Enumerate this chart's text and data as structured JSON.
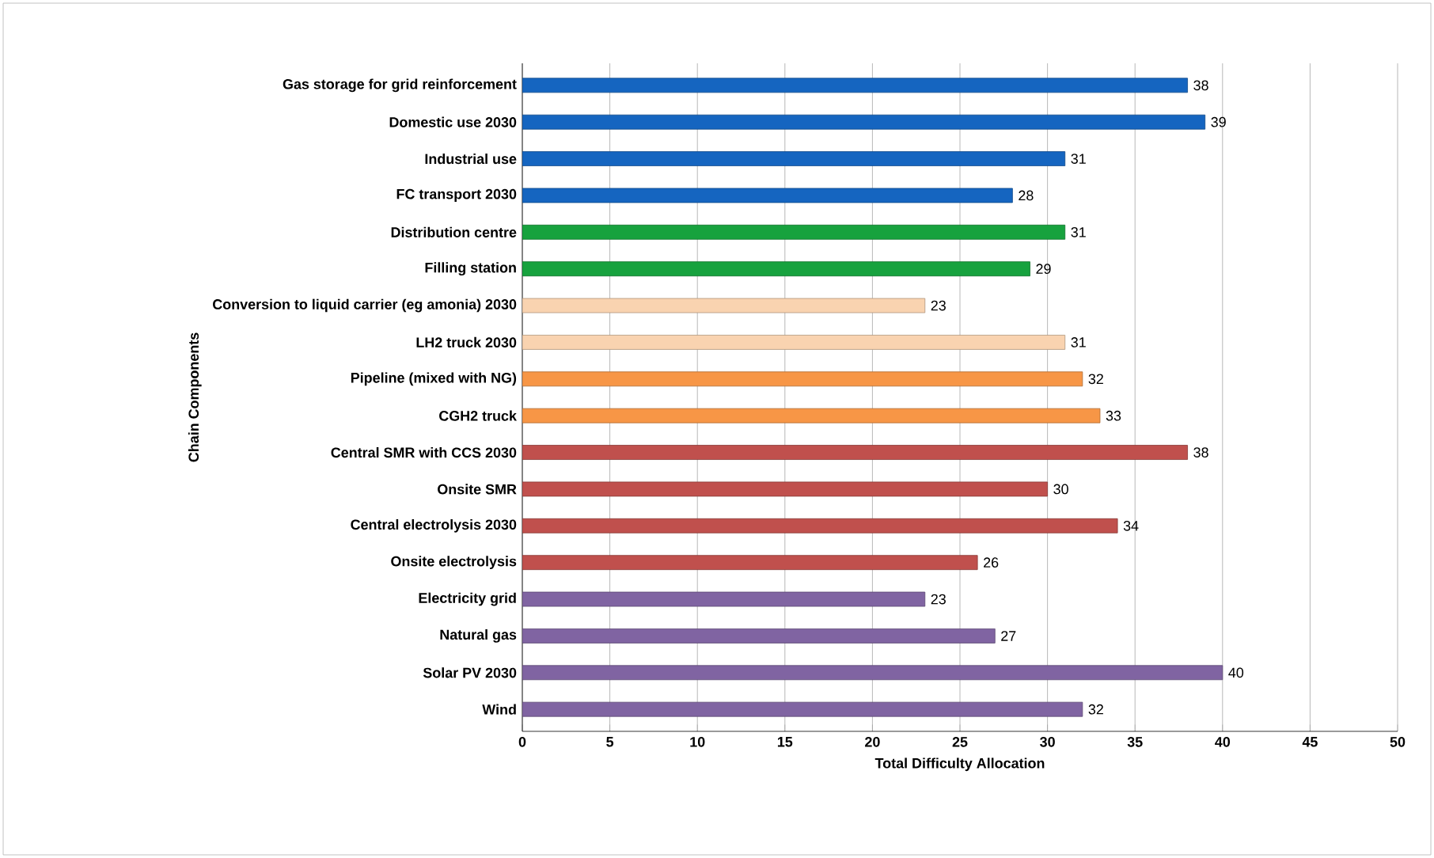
{
  "chart_data": {
    "type": "bar",
    "orientation": "horizontal",
    "xlabel": "Total Difficulty Allocation",
    "ylabel": "Chain Components",
    "categories": [
      "Gas storage for grid reinforcement",
      "Domestic use 2030",
      "Industrial use",
      "FC transport 2030",
      "Distribution centre",
      "Filling station",
      "Conversion to liquid carrier (eg amonia) 2030",
      "LH2 truck 2030",
      "Pipeline (mixed with NG)",
      "CGH2 truck",
      "Central SMR with CCS 2030",
      "Onsite SMR",
      "Central electrolysis 2030",
      "Onsite electrolysis",
      "Electricity grid",
      "Natural gas",
      "Solar PV 2030",
      "Wind"
    ],
    "values": [
      38,
      39,
      31,
      28,
      31,
      29,
      23,
      31,
      32,
      33,
      38,
      30,
      34,
      26,
      23,
      27,
      40,
      32
    ],
    "colors": [
      "#1565c0",
      "#1565c0",
      "#1565c0",
      "#1565c0",
      "#17a23e",
      "#17a23e",
      "#f9d3b0",
      "#f9d3b0",
      "#f79646",
      "#f79646",
      "#c0504d",
      "#c0504d",
      "#c0504d",
      "#c0504d",
      "#8064a2",
      "#8064a2",
      "#8064a2",
      "#8064a2"
    ],
    "xlim": [
      0,
      50
    ],
    "xticks": [
      0,
      5,
      10,
      15,
      20,
      25,
      30,
      35,
      40,
      45,
      50
    ],
    "grid": "x",
    "data_labels": true
  }
}
